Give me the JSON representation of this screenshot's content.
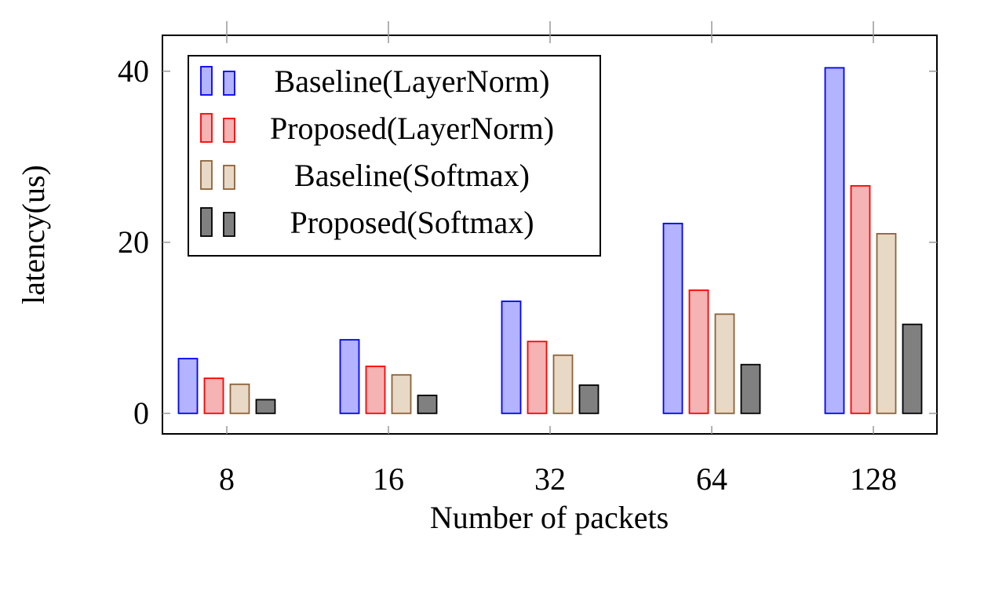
{
  "chart_data": {
    "type": "bar",
    "title": "",
    "xlabel": "Number of packets",
    "ylabel": "latency(us)",
    "categories": [
      "8",
      "16",
      "32",
      "64",
      "128"
    ],
    "ylim": [
      -2.4,
      44.2
    ],
    "yticks": [
      0,
      20,
      40
    ],
    "grid": false,
    "legend_position": "top-left",
    "series": [
      {
        "name": "Baseline(LayerNorm)",
        "values": [
          6.4,
          8.6,
          13.1,
          22.2,
          40.4
        ],
        "fill": "#b3b3ff",
        "stroke": "#0000ff"
      },
      {
        "name": "Proposed(LayerNorm)",
        "values": [
          4.1,
          5.5,
          8.4,
          14.4,
          26.6
        ],
        "fill": "#f5b3b3",
        "stroke": "#ff0000"
      },
      {
        "name": "Baseline(Softmax)",
        "values": [
          3.4,
          4.5,
          6.8,
          11.6,
          21.0
        ],
        "fill": "#e8d8c6",
        "stroke": "#8c6239"
      },
      {
        "name": "Proposed(Softmax)",
        "values": [
          1.6,
          2.1,
          3.3,
          5.7,
          10.4
        ],
        "fill": "#808080",
        "stroke": "#000000"
      }
    ]
  }
}
